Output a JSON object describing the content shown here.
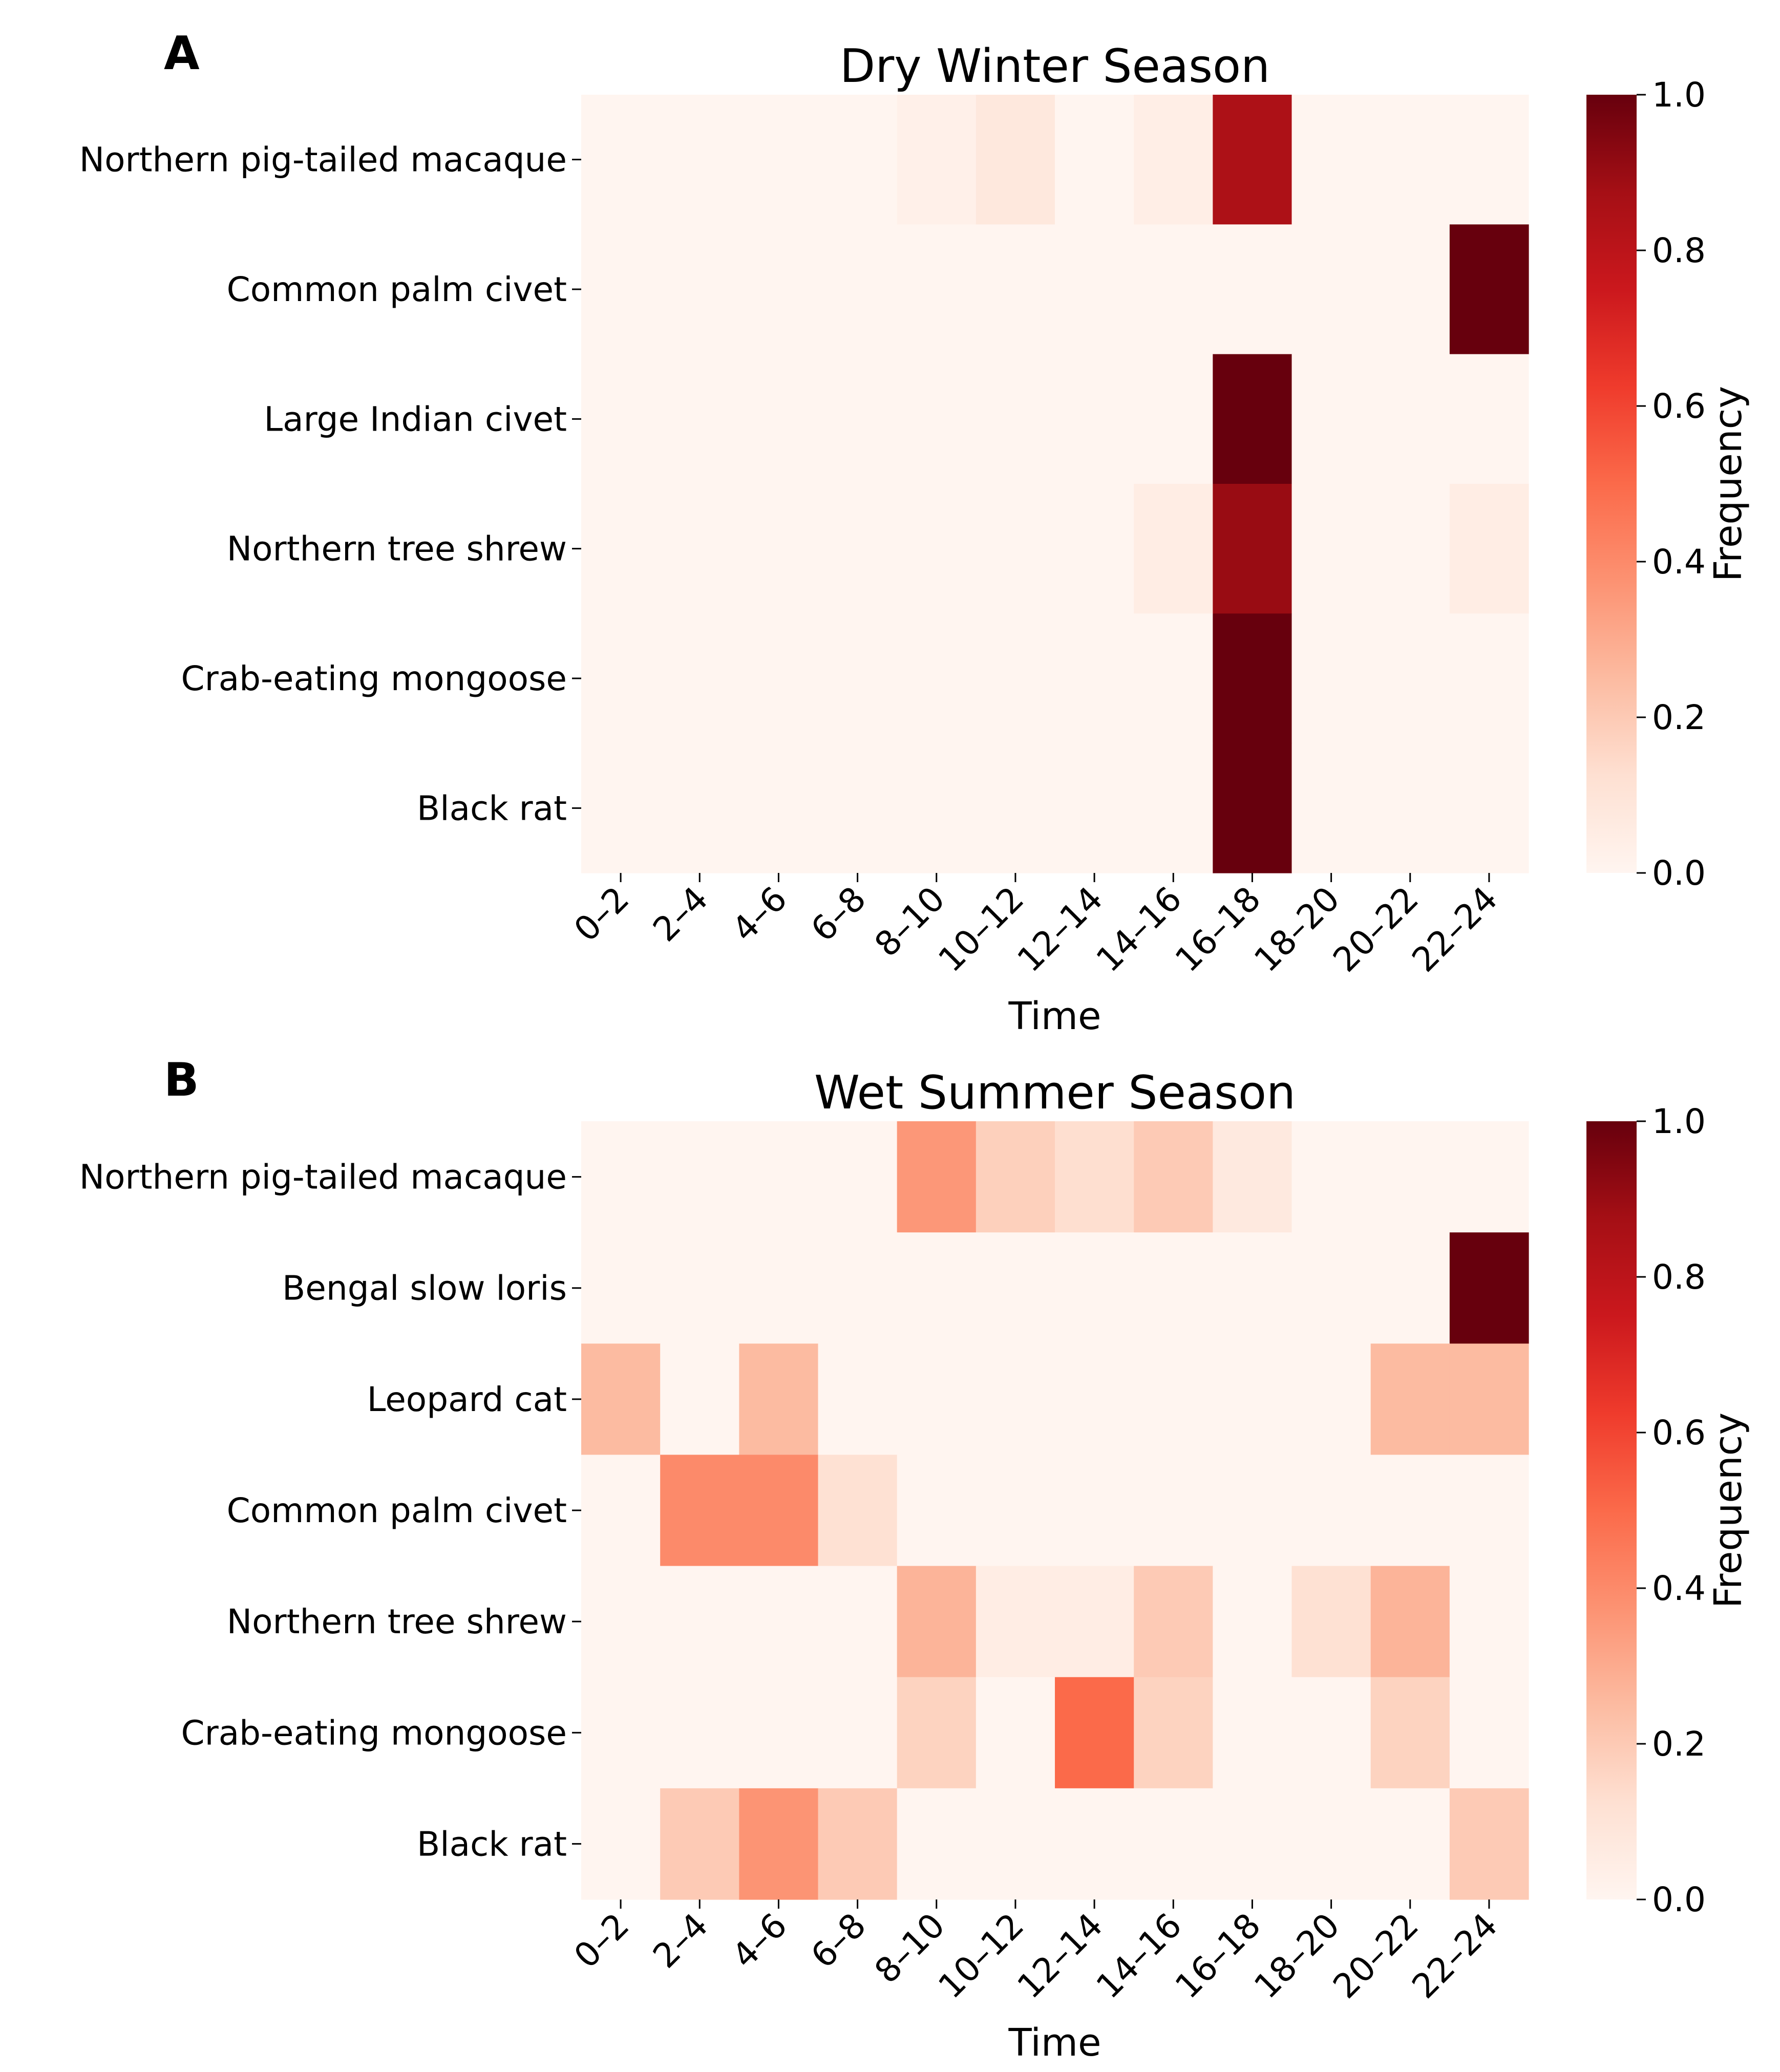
{
  "chart_data": [
    {
      "panel_letter": "A",
      "type": "heatmap",
      "title": "Dry Winter Season",
      "xlabel": "Time",
      "colorbar_label": "Frequency",
      "colorbar_ticks": [
        "0.0",
        "0.2",
        "0.4",
        "0.6",
        "0.8",
        "1.0"
      ],
      "vmin": 0,
      "vmax": 1,
      "columns": [
        "0–2",
        "2–4",
        "4–6",
        "6–8",
        "8–10",
        "10–12",
        "12–14",
        "14–16",
        "16–18",
        "18–20",
        "20–22",
        "22–24"
      ],
      "rows": [
        "Northern pig-tailed macaque",
        "Common palm civet",
        "Large Indian civet",
        "Northern tree shrew",
        "Crab-eating mongoose",
        "Black rat"
      ],
      "values": [
        [
          0,
          0,
          0,
          0,
          0.03,
          0.08,
          0,
          0.04,
          0.85,
          0,
          0,
          0
        ],
        [
          0,
          0,
          0,
          0,
          0,
          0,
          0,
          0,
          0,
          0,
          0,
          1.0
        ],
        [
          0,
          0,
          0,
          0,
          0,
          0,
          0,
          0,
          1.0,
          0,
          0,
          0
        ],
        [
          0,
          0,
          0,
          0,
          0,
          0,
          0,
          0.05,
          0.9,
          0,
          0,
          0.05
        ],
        [
          0,
          0,
          0,
          0,
          0,
          0,
          0,
          0,
          1.0,
          0,
          0,
          0
        ],
        [
          0,
          0,
          0,
          0,
          0,
          0,
          0,
          0,
          1.0,
          0,
          0,
          0
        ]
      ]
    },
    {
      "panel_letter": "B",
      "type": "heatmap",
      "title": "Wet Summer Season",
      "xlabel": "Time",
      "colorbar_label": "Frequency",
      "colorbar_ticks": [
        "0.0",
        "0.2",
        "0.4",
        "0.6",
        "0.8",
        "1.0"
      ],
      "vmin": 0,
      "vmax": 1,
      "columns": [
        "0–2",
        "2–4",
        "4–6",
        "6–8",
        "8–10",
        "10–12",
        "12–14",
        "14–16",
        "16–18",
        "18–20",
        "20–22",
        "22–24"
      ],
      "rows": [
        "Northern pig-tailed macaque",
        "Bengal slow loris",
        "Leopard cat",
        "Common palm civet",
        "Northern tree shrew",
        "Crab-eating mongoose",
        "Black rat"
      ],
      "values": [
        [
          0,
          0,
          0,
          0,
          0.36,
          0.18,
          0.13,
          0.2,
          0.07,
          0,
          0,
          0
        ],
        [
          0,
          0,
          0,
          0,
          0,
          0,
          0,
          0,
          0,
          0,
          0,
          1.0
        ],
        [
          0.25,
          0,
          0.25,
          0,
          0,
          0,
          0,
          0,
          0,
          0,
          0.25,
          0.25
        ],
        [
          0,
          0.4,
          0.4,
          0.12,
          0,
          0,
          0,
          0,
          0,
          0,
          0,
          0
        ],
        [
          0,
          0,
          0,
          0,
          0.27,
          0.05,
          0.05,
          0.2,
          0,
          0.12,
          0.27,
          0
        ],
        [
          0,
          0,
          0,
          0,
          0.17,
          0,
          0.5,
          0.17,
          0,
          0,
          0.17,
          0
        ],
        [
          0,
          0.2,
          0.37,
          0.2,
          0,
          0,
          0,
          0,
          0,
          0,
          0,
          0.2
        ]
      ]
    }
  ]
}
